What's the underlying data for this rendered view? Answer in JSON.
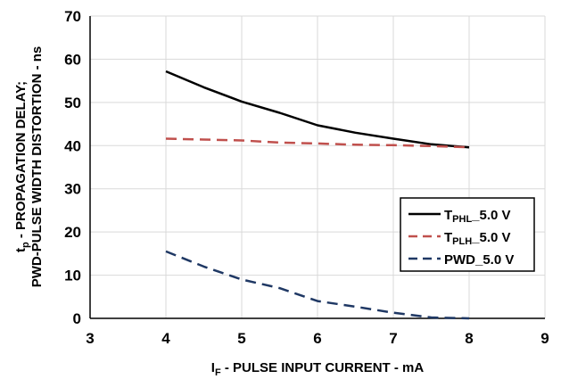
{
  "chart_data": {
    "type": "line",
    "title": "",
    "xlabel": {
      "main": "I",
      "sub": "F",
      "rest": " - PULSE INPUT CURRENT - mA"
    },
    "ylabel": {
      "line1_main": "t",
      "line1_sub": "p",
      "line1_rest": " - PROPAGATION DELAY;",
      "line2": "PWD-PULSE WIDTH DISTORTION - ns"
    },
    "xlim": [
      3,
      9
    ],
    "ylim": [
      0,
      70
    ],
    "xticks": [
      "3",
      "4",
      "5",
      "6",
      "7",
      "8",
      "9"
    ],
    "yticks": [
      "0",
      "10",
      "20",
      "30",
      "40",
      "50",
      "60",
      "70"
    ],
    "grid": true,
    "legend_position": "right",
    "series": [
      {
        "legend_main": "T",
        "legend_sub": "PHL",
        "legend_rest": "_5.0 V",
        "color": "#000000",
        "dash": "solid",
        "x": [
          4,
          4.5,
          5,
          5.5,
          6,
          6.5,
          7,
          7.5,
          8
        ],
        "y": [
          57.2,
          53.5,
          50.2,
          47.6,
          44.7,
          43.0,
          41.6,
          40.3,
          39.6
        ]
      },
      {
        "legend_main": "T",
        "legend_sub": "PLH",
        "legend_rest": "_5.0 V",
        "color": "#c0504d",
        "dash": "dashed",
        "x": [
          4,
          4.5,
          5,
          5.5,
          6,
          6.5,
          7,
          7.5,
          8
        ],
        "y": [
          41.6,
          41.4,
          41.2,
          40.7,
          40.5,
          40.2,
          40.1,
          39.9,
          39.6
        ]
      },
      {
        "legend_main": "PWD_5.0 V",
        "legend_sub": "",
        "legend_rest": "",
        "color": "#1f3864",
        "dash": "dashed",
        "x": [
          4,
          4.5,
          5,
          5.5,
          6,
          6.5,
          7,
          7.5,
          8
        ],
        "y": [
          15.5,
          12.0,
          9.0,
          7.0,
          4.0,
          2.7,
          1.3,
          0.2,
          0.0
        ]
      }
    ]
  }
}
